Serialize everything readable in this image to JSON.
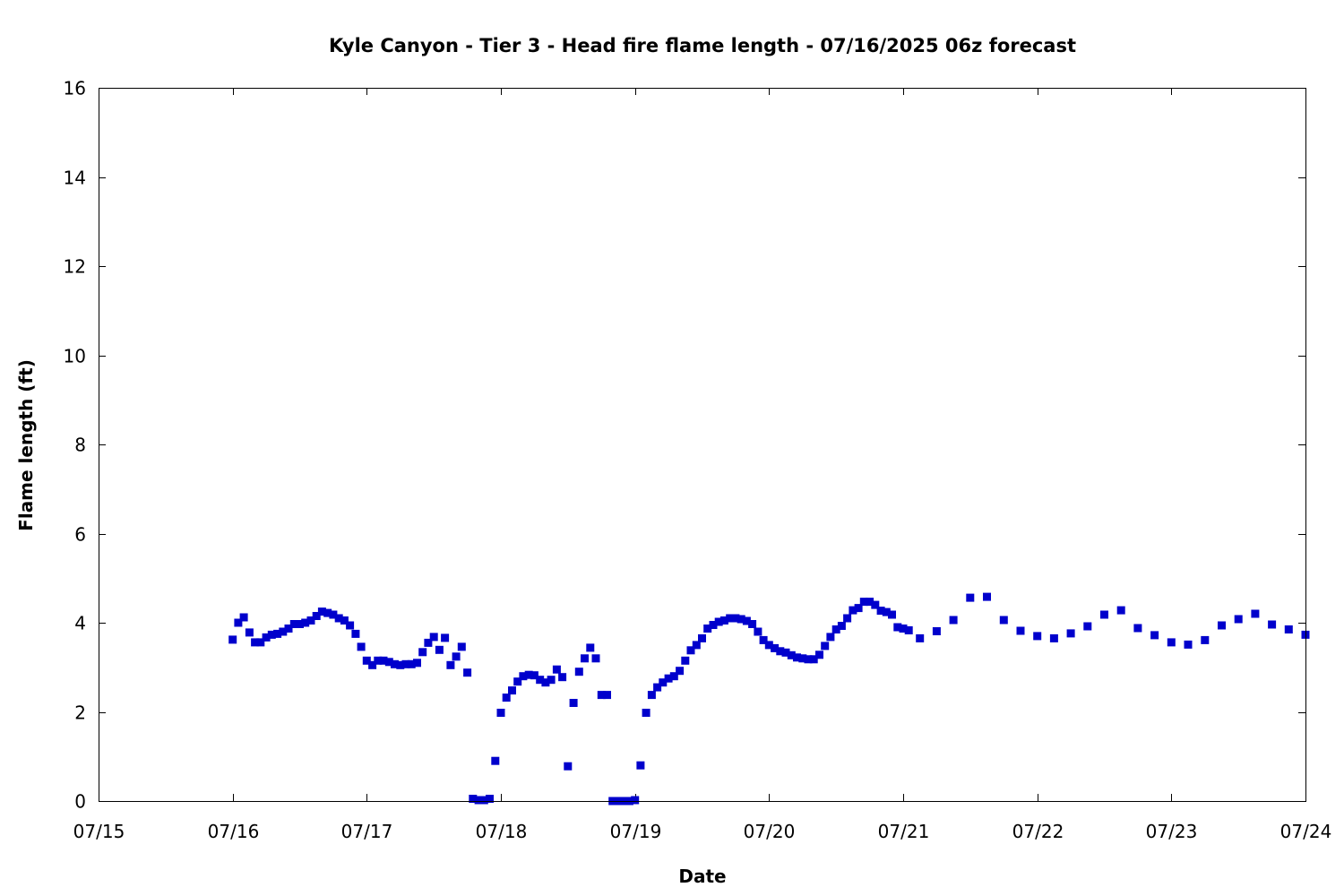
{
  "chart_data": {
    "type": "scatter",
    "title": "Kyle Canyon - Tier 3 - Head fire flame length - 07/16/2025 06z forecast",
    "xlabel": "Date",
    "ylabel": "Flame length (ft)",
    "xlim": [
      "07/15",
      "07/24"
    ],
    "ylim": [
      0,
      16
    ],
    "x_ticks": [
      "07/15",
      "07/16",
      "07/17",
      "07/18",
      "07/19",
      "07/20",
      "07/21",
      "07/22",
      "07/23",
      "07/24"
    ],
    "y_ticks": [
      "0",
      "2",
      "4",
      "6",
      "8",
      "10",
      "12",
      "14",
      "16"
    ],
    "grid": false,
    "legend": "none",
    "marker_color": "#0000cc",
    "marker": "square",
    "series": [
      {
        "points": [
          [
            "07/16 00:00",
            3.62
          ],
          [
            "07/16 01:00",
            4.0
          ],
          [
            "07/16 02:00",
            4.12
          ],
          [
            "07/16 03:00",
            3.78
          ],
          [
            "07/16 04:00",
            3.56
          ],
          [
            "07/16 05:00",
            3.56
          ],
          [
            "07/16 06:00",
            3.67
          ],
          [
            "07/16 07:00",
            3.73
          ],
          [
            "07/16 08:00",
            3.75
          ],
          [
            "07/16 09:00",
            3.8
          ],
          [
            "07/16 10:00",
            3.87
          ],
          [
            "07/16 11:00",
            3.97
          ],
          [
            "07/16 12:00",
            3.97
          ],
          [
            "07/16 13:00",
            4.0
          ],
          [
            "07/16 14:00",
            4.05
          ],
          [
            "07/16 15:00",
            4.15
          ],
          [
            "07/16 16:00",
            4.25
          ],
          [
            "07/16 17:00",
            4.22
          ],
          [
            "07/16 18:00",
            4.18
          ],
          [
            "07/16 19:00",
            4.1
          ],
          [
            "07/16 20:00",
            4.05
          ],
          [
            "07/16 21:00",
            3.94
          ],
          [
            "07/16 22:00",
            3.75
          ],
          [
            "07/16 23:00",
            3.46
          ],
          [
            "07/17 00:00",
            3.15
          ],
          [
            "07/17 01:00",
            3.05
          ],
          [
            "07/17 02:00",
            3.15
          ],
          [
            "07/17 03:00",
            3.15
          ],
          [
            "07/17 04:00",
            3.12
          ],
          [
            "07/17 05:00",
            3.07
          ],
          [
            "07/17 06:00",
            3.05
          ],
          [
            "07/17 07:00",
            3.07
          ],
          [
            "07/17 08:00",
            3.07
          ],
          [
            "07/17 09:00",
            3.1
          ],
          [
            "07/17 10:00",
            3.34
          ],
          [
            "07/17 11:00",
            3.55
          ],
          [
            "07/17 12:00",
            3.68
          ],
          [
            "07/17 13:00",
            3.39
          ],
          [
            "07/17 14:00",
            3.66
          ],
          [
            "07/17 15:00",
            3.05
          ],
          [
            "07/17 16:00",
            3.24
          ],
          [
            "07/17 17:00",
            3.46
          ],
          [
            "07/17 18:00",
            2.88
          ],
          [
            "07/17 19:00",
            0.05
          ],
          [
            "07/17 20:00",
            0.02
          ],
          [
            "07/17 21:00",
            0.02
          ],
          [
            "07/17 22:00",
            0.05
          ],
          [
            "07/17 23:00",
            0.9
          ],
          [
            "07/18 00:00",
            1.98
          ],
          [
            "07/18 01:00",
            2.32
          ],
          [
            "07/18 02:00",
            2.48
          ],
          [
            "07/18 03:00",
            2.68
          ],
          [
            "07/18 04:00",
            2.8
          ],
          [
            "07/18 05:00",
            2.83
          ],
          [
            "07/18 06:00",
            2.82
          ],
          [
            "07/18 07:00",
            2.72
          ],
          [
            "07/18 08:00",
            2.66
          ],
          [
            "07/18 09:00",
            2.72
          ],
          [
            "07/18 10:00",
            2.95
          ],
          [
            "07/18 11:00",
            2.78
          ],
          [
            "07/18 12:00",
            0.78
          ],
          [
            "07/18 13:00",
            2.2
          ],
          [
            "07/18 14:00",
            2.9
          ],
          [
            "07/18 15:00",
            3.2
          ],
          [
            "07/18 16:00",
            3.44
          ],
          [
            "07/18 17:00",
            3.2
          ],
          [
            "07/18 18:00",
            2.38
          ],
          [
            "07/18 19:00",
            2.38
          ],
          [
            "07/18 20:00",
            0.0
          ],
          [
            "07/18 21:00",
            0.0
          ],
          [
            "07/18 22:00",
            0.0
          ],
          [
            "07/18 23:00",
            0.0
          ],
          [
            "07/19 00:00",
            0.02
          ],
          [
            "07/19 01:00",
            0.8
          ],
          [
            "07/19 02:00",
            1.98
          ],
          [
            "07/19 03:00",
            2.38
          ],
          [
            "07/19 04:00",
            2.55
          ],
          [
            "07/19 05:00",
            2.66
          ],
          [
            "07/19 06:00",
            2.75
          ],
          [
            "07/19 07:00",
            2.8
          ],
          [
            "07/19 08:00",
            2.92
          ],
          [
            "07/19 09:00",
            3.15
          ],
          [
            "07/19 10:00",
            3.38
          ],
          [
            "07/19 11:00",
            3.5
          ],
          [
            "07/19 12:00",
            3.65
          ],
          [
            "07/19 13:00",
            3.87
          ],
          [
            "07/19 14:00",
            3.95
          ],
          [
            "07/19 15:00",
            4.02
          ],
          [
            "07/19 16:00",
            4.05
          ],
          [
            "07/19 17:00",
            4.1
          ],
          [
            "07/19 18:00",
            4.1
          ],
          [
            "07/19 19:00",
            4.08
          ],
          [
            "07/19 20:00",
            4.04
          ],
          [
            "07/19 21:00",
            3.97
          ],
          [
            "07/19 22:00",
            3.8
          ],
          [
            "07/19 23:00",
            3.61
          ],
          [
            "07/20 00:00",
            3.5
          ],
          [
            "07/20 01:00",
            3.43
          ],
          [
            "07/20 02:00",
            3.36
          ],
          [
            "07/20 03:00",
            3.33
          ],
          [
            "07/20 04:00",
            3.27
          ],
          [
            "07/20 05:00",
            3.22
          ],
          [
            "07/20 06:00",
            3.2
          ],
          [
            "07/20 07:00",
            3.18
          ],
          [
            "07/20 08:00",
            3.18
          ],
          [
            "07/20 09:00",
            3.28
          ],
          [
            "07/20 10:00",
            3.48
          ],
          [
            "07/20 11:00",
            3.68
          ],
          [
            "07/20 12:00",
            3.85
          ],
          [
            "07/20 13:00",
            3.93
          ],
          [
            "07/20 14:00",
            4.1
          ],
          [
            "07/20 15:00",
            4.28
          ],
          [
            "07/20 16:00",
            4.33
          ],
          [
            "07/20 17:00",
            4.47
          ],
          [
            "07/20 18:00",
            4.47
          ],
          [
            "07/20 19:00",
            4.4
          ],
          [
            "07/20 20:00",
            4.27
          ],
          [
            "07/20 21:00",
            4.24
          ],
          [
            "07/20 22:00",
            4.18
          ],
          [
            "07/20 23:00",
            3.9
          ],
          [
            "07/21 00:00",
            3.87
          ],
          [
            "07/21 01:00",
            3.83
          ],
          [
            "07/21 03:00",
            3.65
          ],
          [
            "07/21 06:00",
            3.81
          ],
          [
            "07/21 09:00",
            4.06
          ],
          [
            "07/21 12:00",
            4.56
          ],
          [
            "07/21 15:00",
            4.58
          ],
          [
            "07/21 18:00",
            4.06
          ],
          [
            "07/21 21:00",
            3.82
          ],
          [
            "07/22 00:00",
            3.7
          ],
          [
            "07/22 03:00",
            3.65
          ],
          [
            "07/22 06:00",
            3.76
          ],
          [
            "07/22 09:00",
            3.92
          ],
          [
            "07/22 12:00",
            4.18
          ],
          [
            "07/22 15:00",
            4.28
          ],
          [
            "07/22 18:00",
            3.88
          ],
          [
            "07/22 21:00",
            3.72
          ],
          [
            "07/23 00:00",
            3.56
          ],
          [
            "07/23 03:00",
            3.51
          ],
          [
            "07/23 06:00",
            3.61
          ],
          [
            "07/23 09:00",
            3.94
          ],
          [
            "07/23 12:00",
            4.08
          ],
          [
            "07/23 15:00",
            4.2
          ],
          [
            "07/23 18:00",
            3.96
          ],
          [
            "07/23 21:00",
            3.85
          ],
          [
            "07/24 00:00",
            3.73
          ]
        ]
      }
    ]
  }
}
